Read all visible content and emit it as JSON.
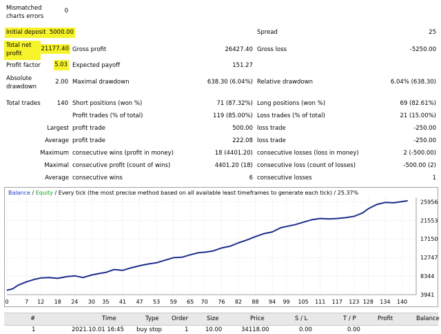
{
  "report": {
    "mismatched_label": "Mismatched charts errors",
    "mismatched_value": "0",
    "initial_deposit_label": "Initial deposit",
    "initial_deposit_value": "5000.00",
    "spread_label": "Spread",
    "spread_value": "25",
    "total_net_profit_label": "Total net profit",
    "total_net_profit_value": "21177.40",
    "gross_profit_label": "Gross profit",
    "gross_profit_value": "26427.40",
    "gross_loss_label": "Gross loss",
    "gross_loss_value": "-5250.00",
    "profit_factor_label": "Profit factor",
    "profit_factor_value": "5.03",
    "expected_payoff_label": "Expected payoff",
    "expected_payoff_value": "151.27",
    "absolute_drawdown_label": "Absolute drawdown",
    "absolute_drawdown_value": "2.00",
    "maximal_drawdown_label": "Maximal drawdown",
    "maximal_drawdown_value": "638.30 (6.04%)",
    "relative_drawdown_label": "Relative drawdown",
    "relative_drawdown_value": "6.04% (638.30)",
    "total_trades_label": "Total trades",
    "total_trades_value": "140",
    "short_positions_label": "Short positions (won %)",
    "short_positions_value": "71 (87.32%)",
    "long_positions_label": "Long positions (won %)",
    "long_positions_value": "69 (82.61%)",
    "profit_trades_label": "Profit trades (% of total)",
    "profit_trades_value": "119 (85.00%)",
    "loss_trades_label": "Loss trades (% of total)",
    "loss_trades_value": "21 (15.00%)",
    "largest_label": "Largest",
    "largest_profit_label": "profit trade",
    "largest_profit_value": "500.00",
    "largest_loss_label": "loss trade",
    "largest_loss_value": "-250.00",
    "average_label": "Average",
    "average_profit_label": "profit trade",
    "average_profit_value": "222.08",
    "average_loss_label": "loss trade",
    "average_loss_value": "-250.00",
    "maximum_label": "Maximum",
    "max_cons_wins_label": "consecutive wins (profit in money)",
    "max_cons_wins_value": "18 (4401.20)",
    "max_cons_losses_label": "consecutive losses (loss in money)",
    "max_cons_losses_value": "2 (-500.00)",
    "maximal_label": "Maximal",
    "maximal_cons_profit_label": "consecutive profit (count of wins)",
    "maximal_cons_profit_value": "4401.20 (18)",
    "maximal_cons_loss_label": "consecutive loss (count of losses)",
    "maximal_cons_loss_value": "-500.00 (2)",
    "average2_label": "Average",
    "avg_cons_wins_label": "consecutive wins",
    "avg_cons_wins_value": "6",
    "avg_cons_losses_label": "consecutive losses",
    "avg_cons_losses_value": "1"
  },
  "chart_legend": {
    "balance": "Balance",
    "separator": " / ",
    "equity": "Equity",
    "rest": " / Every tick (the most precise method based on all available least timeframes to generate each tick) / 25.37%"
  },
  "colors": {
    "balance_line": "#1c2a8a",
    "legend_balance": "#1f3bbf",
    "legend_equity": "#1a9a1a",
    "highlight": "#f7f32a",
    "grid": "#c8c8c8"
  },
  "chart_data": {
    "type": "line",
    "title": "",
    "xlabel": "",
    "ylabel": "",
    "xlim": [
      0,
      145
    ],
    "ylim": [
      3941,
      27000
    ],
    "x_ticks": [
      0,
      7,
      12,
      18,
      24,
      30,
      35,
      41,
      47,
      53,
      59,
      65,
      70,
      76,
      82,
      88,
      94,
      99,
      105,
      111,
      117,
      123,
      128,
      134,
      140
    ],
    "y_ticks": [
      3941,
      8344,
      12747,
      17150,
      21553,
      25956
    ],
    "grid": true,
    "legend": "top-left",
    "series": [
      {
        "name": "Balance",
        "x": [
          0,
          2,
          4,
          7,
          10,
          12,
          15,
          18,
          21,
          24,
          27,
          30,
          33,
          35,
          38,
          41,
          44,
          47,
          50,
          53,
          56,
          59,
          62,
          65,
          68,
          70,
          73,
          76,
          79,
          82,
          85,
          88,
          91,
          94,
          97,
          99,
          102,
          105,
          108,
          111,
          114,
          117,
          120,
          123,
          126,
          128,
          131,
          134,
          137,
          140,
          142
        ],
        "y": [
          5000,
          5300,
          6200,
          7000,
          7600,
          7900,
          8000,
          7800,
          8200,
          8400,
          8000,
          8600,
          9000,
          9200,
          9900,
          9700,
          10300,
          10800,
          11200,
          11500,
          12100,
          12700,
          12800,
          13400,
          13900,
          14000,
          14300,
          15000,
          15400,
          16200,
          16900,
          17700,
          18400,
          18800,
          19800,
          20100,
          20500,
          21100,
          21700,
          22000,
          21900,
          22000,
          22200,
          22500,
          23300,
          24300,
          25300,
          25800,
          25700,
          26000,
          26200
        ]
      }
    ]
  },
  "deals_table": {
    "columns": [
      "#",
      "Time",
      "Type",
      "Order",
      "Size",
      "Price",
      "S / L",
      "T / P",
      "Profit",
      "Balance"
    ],
    "row": [
      "1",
      "2021.10.01 16:45",
      "buy stop",
      "1",
      "10.00",
      "34118.00",
      "0.00",
      "0.00",
      "",
      ""
    ]
  }
}
